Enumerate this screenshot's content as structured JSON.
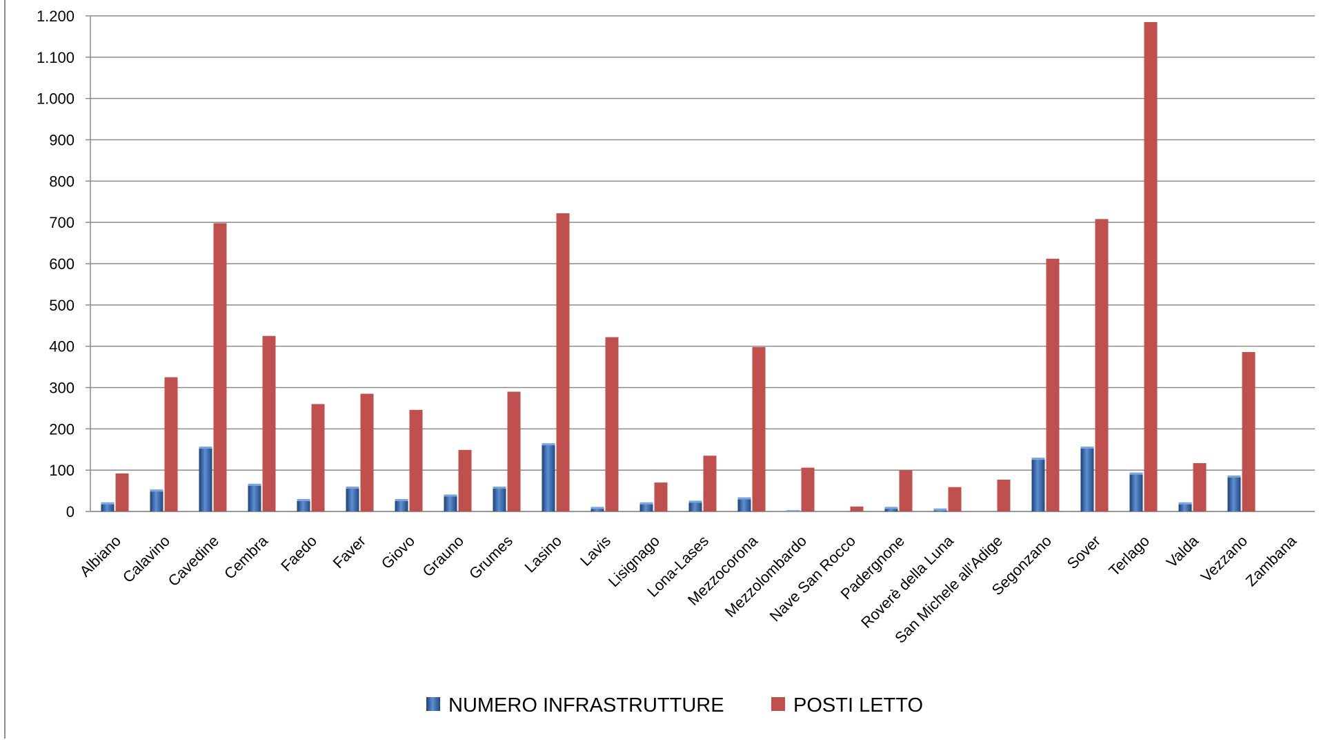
{
  "chart_data": {
    "type": "bar",
    "title": "",
    "xlabel": "",
    "ylabel": "",
    "ylim": [
      0,
      1200
    ],
    "yticks": [
      0,
      100,
      200,
      300,
      400,
      500,
      600,
      700,
      800,
      900,
      1000,
      1100,
      1200
    ],
    "ytick_labels": [
      "0",
      "100",
      "200",
      "300",
      "400",
      "500",
      "600",
      "700",
      "800",
      "900",
      "1.000",
      "1.100",
      "1.200"
    ],
    "grid": true,
    "legend_position": "bottom",
    "categories": [
      "Albiano",
      "Calavino",
      "Cavedine",
      "Cembra",
      "Faedo",
      "Faver",
      "Giovo",
      "Grauno",
      "Grumes",
      "Lasino",
      "Lavis",
      "Lisignago",
      "Lona-Lases",
      "Mezzocorona",
      "Mezzolombardo",
      "Nave San Rocco",
      "Padergnone",
      "Roverè della Luna",
      "San Michele all'Adige",
      "Segonzano",
      "Sover",
      "Terlago",
      "Valda",
      "Vezzano",
      "Zambana"
    ],
    "series": [
      {
        "name": "NUMERO INFRASTRUTTURE",
        "color": "#3f6fb0",
        "values": [
          22,
          53,
          157,
          67,
          30,
          60,
          30,
          41,
          60,
          165,
          11,
          22,
          26,
          34,
          3,
          0,
          11,
          7,
          0,
          130,
          157,
          94,
          22,
          87,
          0
        ]
      },
      {
        "name": "POSTI LETTO",
        "color": "#c0504d",
        "values": [
          92,
          325,
          698,
          425,
          260,
          285,
          246,
          149,
          290,
          722,
          422,
          70,
          135,
          398,
          106,
          12,
          100,
          59,
          77,
          612,
          708,
          1185,
          117,
          386,
          0
        ]
      }
    ]
  }
}
